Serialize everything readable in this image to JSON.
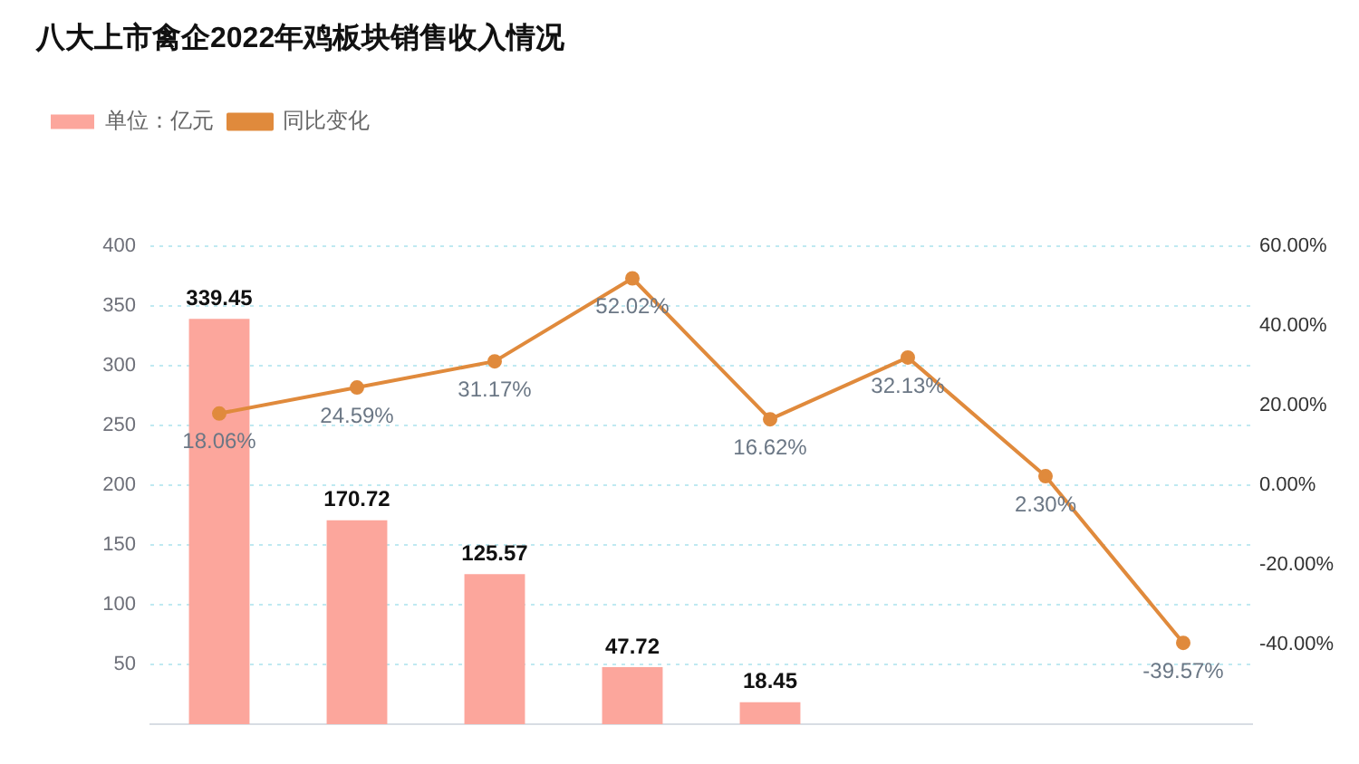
{
  "chart_data": {
    "type": "bar",
    "title": "八大上市禽企2022年鸡板块销售收入情况",
    "categories": [
      null,
      null,
      null,
      null,
      null,
      null,
      null,
      null
    ],
    "series": [
      {
        "name": "单位：亿元",
        "color": "#fca69c",
        "values": [
          339.45,
          170.72,
          125.57,
          47.72,
          18.45,
          null,
          null,
          null
        ],
        "value_labels": [
          "339.45",
          "170.72",
          "125.57",
          "47.72",
          "18.45",
          null,
          null,
          null
        ]
      },
      {
        "name": "同比变化",
        "type": "line",
        "axis": "y2",
        "color": "#e08a3c",
        "values": [
          18.06,
          24.59,
          31.17,
          52.02,
          16.62,
          32.13,
          2.3,
          -39.57
        ],
        "value_labels": [
          "18.06%",
          "24.59%",
          "31.17%",
          "52.02%",
          "16.62%",
          "32.13%",
          "2.30%",
          "-39.57%"
        ]
      }
    ],
    "ylim": [
      0,
      400
    ],
    "yticks": [
      50,
      100,
      150,
      200,
      250,
      300,
      350,
      400
    ],
    "y2lim": [
      -60,
      60
    ],
    "y2ticks": [
      {
        "value": -40,
        "label": "-40.00%"
      },
      {
        "value": -20,
        "label": "-20.00%"
      },
      {
        "value": 0,
        "label": "0.00%"
      },
      {
        "value": 20,
        "label": "20.00%"
      },
      {
        "value": 40,
        "label": "40.00%"
      },
      {
        "value": 60,
        "label": "60.00%"
      }
    ],
    "grid": "y",
    "legend": "top left",
    "marker": "circle"
  }
}
